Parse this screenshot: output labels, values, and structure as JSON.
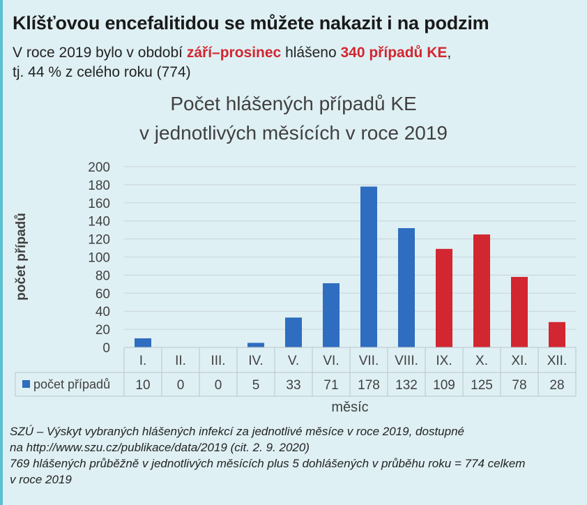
{
  "headline": "Klíšťovou encefalitidou se můžete nakazit i na podzim",
  "lead": {
    "part1": "V roce 2019 bylo v období ",
    "hl1": "září–prosinec",
    "part2": " hlášeno ",
    "hl2": "340 případů KE",
    "part3": ",",
    "line2": "tj. 44 % z celého roku (774)"
  },
  "chart_data": {
    "type": "bar",
    "title_line1": "Počet hlášených případů KE",
    "title_line2": "v jednotlivých měsících v roce 2019",
    "ylabel": "počet případů",
    "xlabel": "měsíc",
    "categories": [
      "I.",
      "II.",
      "III.",
      "IV.",
      "V.",
      "VI.",
      "VII.",
      "VIII.",
      "IX.",
      "X.",
      "XI.",
      "XII."
    ],
    "series": [
      {
        "name": "počet případů",
        "values": [
          10,
          0,
          0,
          5,
          33,
          71,
          178,
          132,
          109,
          125,
          78,
          28
        ]
      }
    ],
    "highlight_from_index": 8,
    "ylim": [
      0,
      200
    ],
    "yticks": [
      0,
      20,
      40,
      60,
      80,
      100,
      120,
      140,
      160,
      180,
      200
    ],
    "grid": true,
    "data_table": true,
    "colors": {
      "base": "#2e6dbf",
      "highlight": "#d22630",
      "grid": "#c8d3d8",
      "table_border": "#b8c4c9"
    }
  },
  "source": {
    "line1": "SZÚ – Výskyt vybraných hlášených infekcí za jednotlivé měsíce v roce 2019, dostupné",
    "line2": "na http://www.szu.cz/publikace/data/2019 (cit. 2. 9. 2020)",
    "line3": "769 hlášených průběžně v jednotlivých měsících plus 5 dohlášených v průběhu roku = 774 celkem",
    "line4": "v roce 2019"
  }
}
